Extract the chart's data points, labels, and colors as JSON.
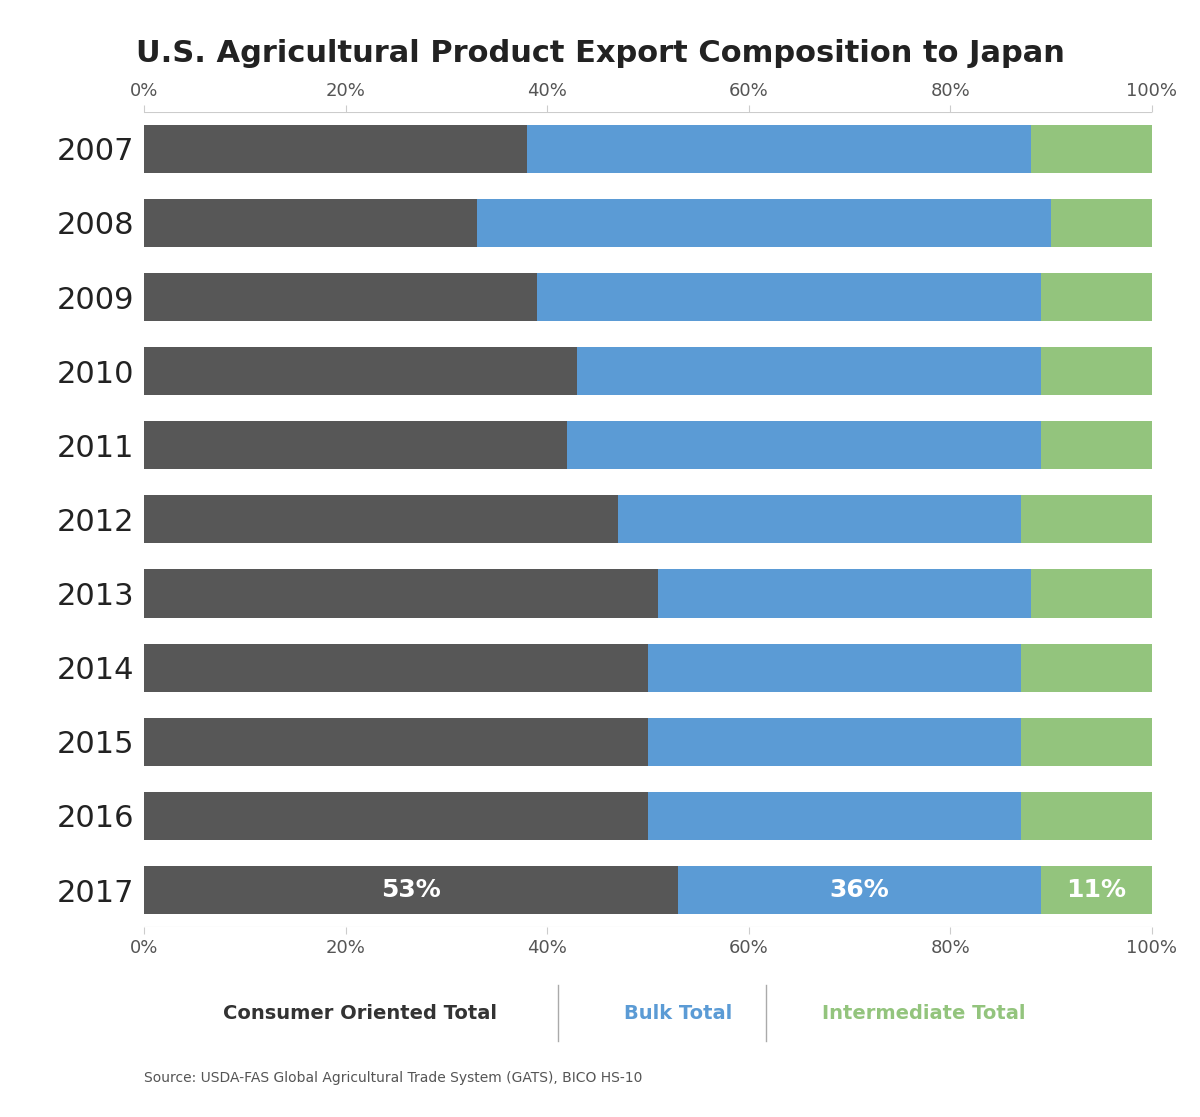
{
  "title": "U.S. Agricultural Product Export Composition to Japan",
  "years": [
    "2007",
    "2008",
    "2009",
    "2010",
    "2011",
    "2012",
    "2013",
    "2014",
    "2015",
    "2016",
    "2017"
  ],
  "consumer_oriented": [
    38,
    33,
    39,
    43,
    42,
    47,
    51,
    50,
    50,
    50,
    53
  ],
  "bulk": [
    50,
    57,
    50,
    46,
    47,
    40,
    37,
    37,
    37,
    37,
    36
  ],
  "intermediate": [
    12,
    10,
    11,
    11,
    11,
    13,
    12,
    13,
    13,
    13,
    11
  ],
  "color_consumer": "#575757",
  "color_bulk": "#5b9bd5",
  "color_intermediate": "#93c47d",
  "label_consumer": "Consumer Oriented Total",
  "label_bulk": "Bulk Total",
  "label_intermediate": "Intermediate Total",
  "source_text": "Source: USDA-FAS Global Agricultural Trade System (GATS), BICO HS-10",
  "annotation_2017": [
    "53%",
    "36%",
    "11%"
  ],
  "bg_color": "#ffffff",
  "bar_height": 0.65
}
